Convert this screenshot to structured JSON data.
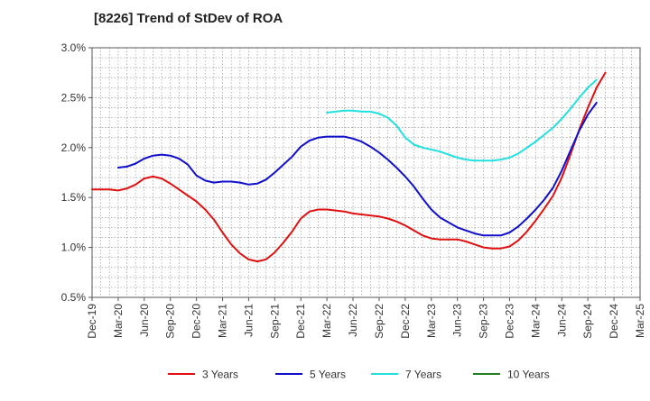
{
  "chart_data": {
    "type": "line",
    "title": "[8226]  Trend of StDev of ROA",
    "xlabel": "",
    "ylabel": "",
    "ylim": [
      0.5,
      3.0
    ],
    "yticks": [
      "0.5%",
      "1.0%",
      "1.5%",
      "2.0%",
      "2.5%",
      "3.0%"
    ],
    "ytick_values": [
      0.5,
      1.0,
      1.5,
      2.0,
      2.5,
      3.0
    ],
    "xticks": [
      "Dec-19",
      "Mar-20",
      "Jun-20",
      "Sep-20",
      "Dec-20",
      "Mar-21",
      "Jun-21",
      "Sep-21",
      "Dec-21",
      "Mar-22",
      "Jun-22",
      "Sep-22",
      "Dec-22",
      "Mar-23",
      "Jun-23",
      "Sep-23",
      "Dec-23",
      "Mar-24",
      "Jun-24",
      "Sep-24",
      "Dec-24",
      "Mar-25"
    ],
    "grid": true,
    "legend": "bottom",
    "series": [
      {
        "name": "3 Years",
        "color": "#e01010",
        "start_index": 0,
        "values": [
          1.58,
          1.58,
          1.58,
          1.57,
          1.59,
          1.63,
          1.69,
          1.71,
          1.69,
          1.64,
          1.58,
          1.52,
          1.46,
          1.38,
          1.28,
          1.15,
          1.03,
          0.94,
          0.88,
          0.86,
          0.88,
          0.95,
          1.05,
          1.16,
          1.29,
          1.36,
          1.38,
          1.38,
          1.37,
          1.36,
          1.34,
          1.33,
          1.32,
          1.31,
          1.29,
          1.26,
          1.22,
          1.17,
          1.12,
          1.09,
          1.08,
          1.08,
          1.08,
          1.06,
          1.03,
          1.0,
          0.99,
          0.99,
          1.01,
          1.07,
          1.16,
          1.27,
          1.39,
          1.52,
          1.7,
          1.93,
          2.18,
          2.4,
          2.6,
          2.75
        ]
      },
      {
        "name": "5 Years",
        "color": "#1010cc",
        "start_index": 3,
        "values": [
          1.8,
          1.81,
          1.84,
          1.89,
          1.92,
          1.93,
          1.92,
          1.89,
          1.83,
          1.72,
          1.67,
          1.65,
          1.66,
          1.66,
          1.65,
          1.63,
          1.64,
          1.68,
          1.75,
          1.83,
          1.91,
          2.01,
          2.07,
          2.1,
          2.11,
          2.11,
          2.11,
          2.09,
          2.06,
          2.01,
          1.95,
          1.88,
          1.8,
          1.71,
          1.61,
          1.49,
          1.38,
          1.3,
          1.25,
          1.2,
          1.17,
          1.14,
          1.12,
          1.12,
          1.12,
          1.15,
          1.21,
          1.29,
          1.38,
          1.48,
          1.6,
          1.77,
          1.97,
          2.17,
          2.33,
          2.45
        ]
      },
      {
        "name": "7 Years",
        "color": "#22e0e0",
        "start_index": 27,
        "values": [
          2.35,
          2.36,
          2.37,
          2.37,
          2.36,
          2.36,
          2.34,
          2.3,
          2.22,
          2.1,
          2.03,
          2.0,
          1.98,
          1.96,
          1.93,
          1.9,
          1.88,
          1.87,
          1.87,
          1.87,
          1.88,
          1.9,
          1.94,
          2.0,
          2.06,
          2.13,
          2.2,
          2.29,
          2.39,
          2.5,
          2.6,
          2.68
        ]
      },
      {
        "name": "10 Years",
        "color": "#208020",
        "start_index": 0,
        "values": []
      }
    ]
  }
}
